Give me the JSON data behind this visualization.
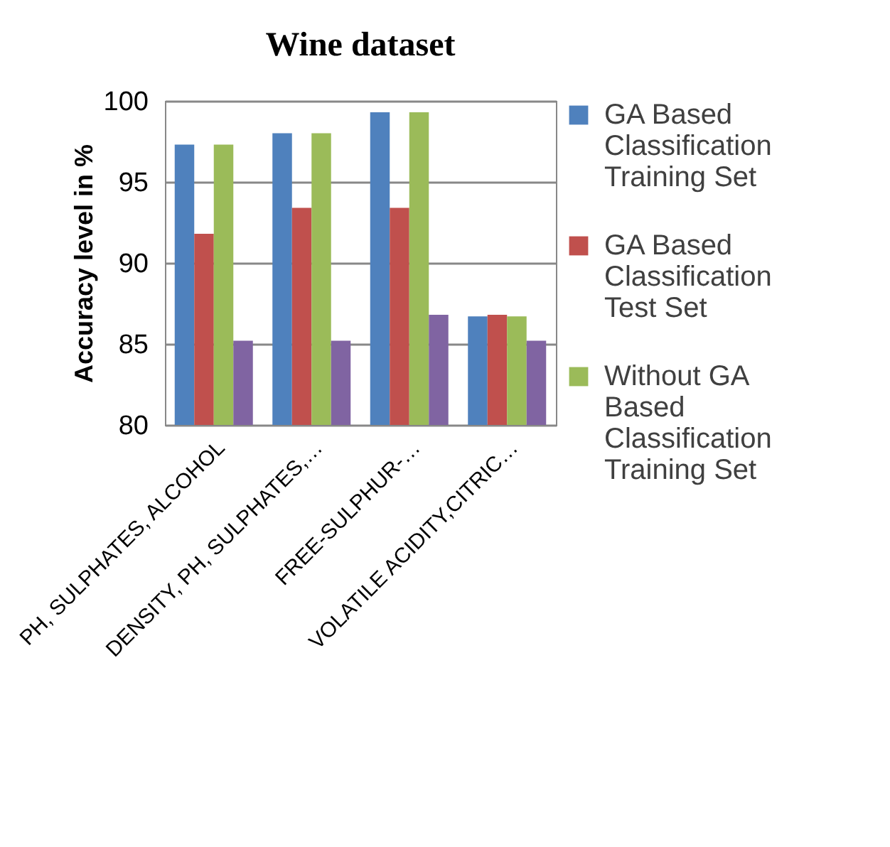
{
  "chart_data": {
    "type": "bar",
    "title": "Wine dataset",
    "ylabel": "Accuracy level in %",
    "categories": [
      "PH, SULPHATES, ALCOHOL",
      "DENSITY, PH, SULPHATES,…",
      "FREE-SULPHUR-…",
      "VOLATILE ACIDITY,CITRIC…"
    ],
    "series": [
      {
        "name": "GA Based Classification Training Set",
        "color": "#4f81bd",
        "values": [
          97.3,
          98.0,
          99.3,
          86.7
        ]
      },
      {
        "name": "GA Based Classification Test Set",
        "color": "#c0504d",
        "values": [
          91.8,
          93.4,
          93.4,
          86.8
        ]
      },
      {
        "name": "Without GA Based Classification Training Set",
        "color": "#9bbb59",
        "values": [
          97.3,
          98.0,
          99.3,
          86.7
        ]
      },
      {
        "color": "#8064a2",
        "values": [
          85.2,
          85.2,
          86.8,
          85.2
        ]
      }
    ],
    "ylim": [
      80,
      100
    ],
    "yticks": [
      80,
      85,
      90,
      95,
      100
    ],
    "grid": "y",
    "legend": "right"
  }
}
